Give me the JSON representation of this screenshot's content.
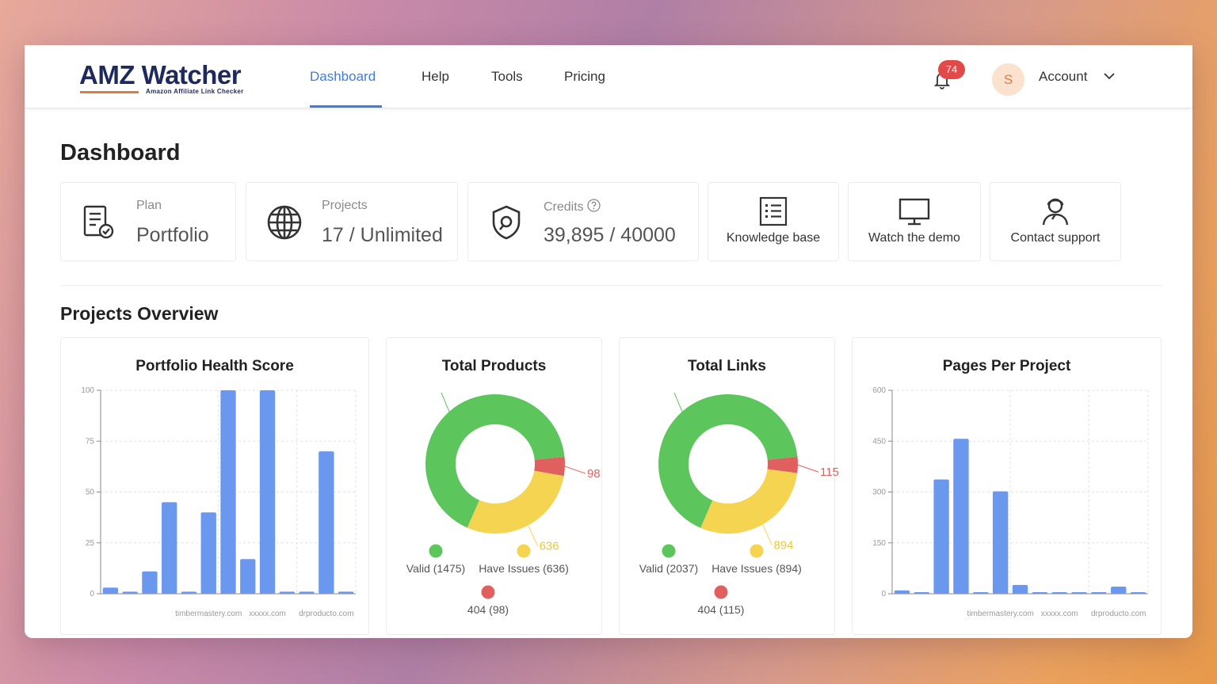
{
  "header": {
    "logo_title": "AMZ Watcher",
    "logo_subtitle": "Amazon Affiliate Link Checker",
    "nav": [
      "Dashboard",
      "Help",
      "Tools",
      "Pricing"
    ],
    "notifications_count": "74",
    "avatar_initial": "S",
    "account_label": "Account"
  },
  "page": {
    "title": "Dashboard"
  },
  "stats": {
    "plan": {
      "label": "Plan",
      "value": "Portfolio"
    },
    "projects": {
      "label": "Projects",
      "value": "17 / Unlimited"
    },
    "credits": {
      "label": "Credits",
      "value": "39,895 / 40000"
    }
  },
  "links": {
    "knowledge": "Knowledge base",
    "demo": "Watch the demo",
    "support": "Contact support"
  },
  "overview": {
    "title": "Projects Overview"
  },
  "colors": {
    "accent": "#3b7de0",
    "bar": "#6b98ef",
    "valid": "#5cc65c",
    "issues": "#f5d451",
    "broken": "#e06060"
  },
  "chart_data": [
    {
      "type": "bar",
      "title": "Portfolio Health Score",
      "ylim": [
        0,
        100
      ],
      "yticks": [
        "0",
        "25",
        "50",
        "75",
        "100"
      ],
      "x_tick_labels": [
        "timbermastery.com",
        "xxxxx.com",
        "drproducto.com"
      ],
      "values": [
        3,
        1,
        11,
        45,
        1,
        40,
        100,
        17,
        100,
        1,
        1,
        70,
        1
      ]
    },
    {
      "type": "pie",
      "title": "Total Products",
      "slices": [
        {
          "label": "Valid (1475)",
          "value": 1475,
          "color": "#5cc65c"
        },
        {
          "label": "Have Issues (636)",
          "value": 636,
          "color": "#f5d451",
          "data_label": "636"
        },
        {
          "label": "404 (98)",
          "value": 98,
          "color": "#e06060",
          "data_label": "98"
        }
      ]
    },
    {
      "type": "pie",
      "title": "Total Links",
      "slices": [
        {
          "label": "Valid (2037)",
          "value": 2037,
          "color": "#5cc65c"
        },
        {
          "label": "Have Issues (894)",
          "value": 894,
          "color": "#f5d451",
          "data_label": "894"
        },
        {
          "label": "404 (115)",
          "value": 115,
          "color": "#e06060",
          "data_label": "115"
        }
      ]
    },
    {
      "type": "bar",
      "title": "Pages Per Project",
      "ylim": [
        0,
        600
      ],
      "yticks": [
        "0",
        "150",
        "300",
        "450",
        "600"
      ],
      "x_tick_labels": [
        "timbermastery.com",
        "xxxxx.com",
        "drproducto.com"
      ],
      "values": [
        10,
        1,
        337,
        457,
        1,
        302,
        26,
        1,
        1,
        1,
        4,
        21,
        1
      ]
    }
  ]
}
